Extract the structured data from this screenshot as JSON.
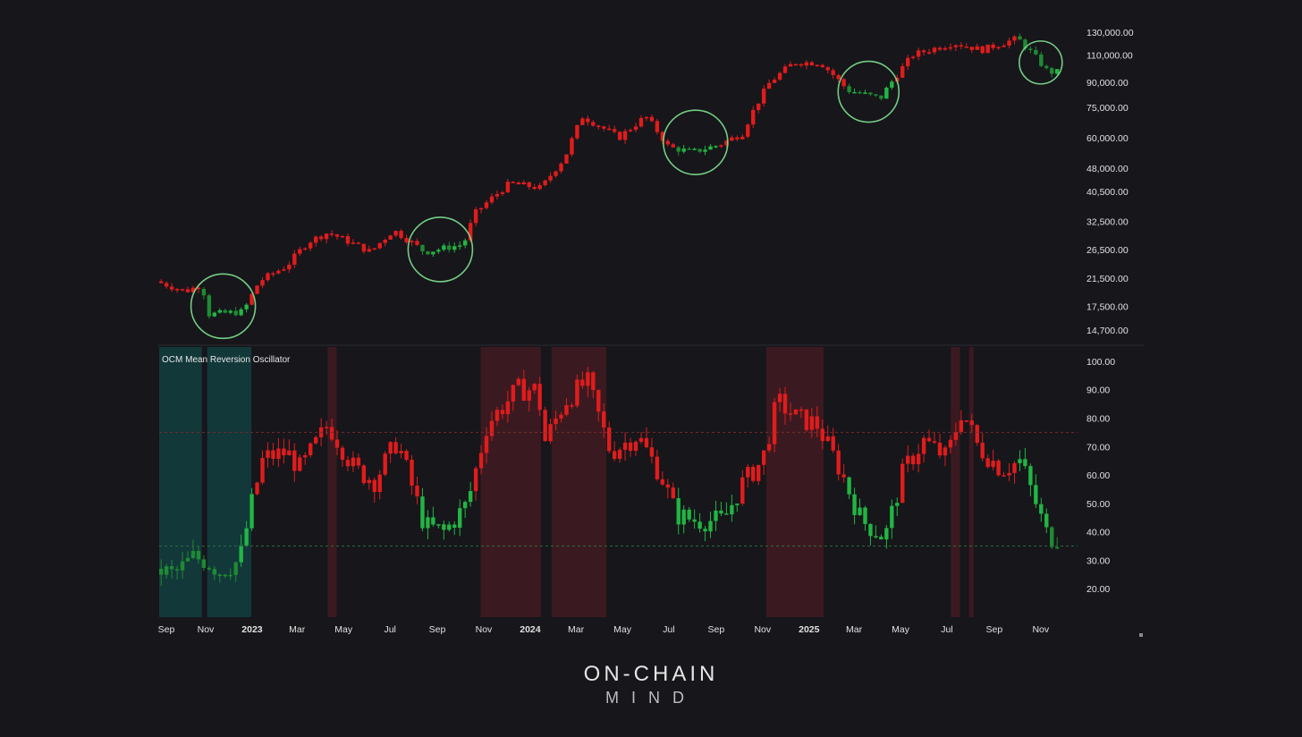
{
  "colors": {
    "background": "#16161b",
    "bearish": "#e01c1c",
    "bullish": "#22b544",
    "bullish_dark": "#1f8a33",
    "highlight_circle": "#7fe08f",
    "overbought_band": "#3a1a20",
    "oversold_band": "#12383a",
    "axis_text": "#e2e2e2"
  },
  "brand": {
    "line1": "ON-CHAIN",
    "line2": "MIND"
  },
  "chart_data": [
    {
      "type": "candlestick",
      "title": "",
      "scale": "log",
      "ylim": [
        13500,
        135000
      ],
      "y_ticks": [
        "130,000.00",
        "110,000.00",
        "90,000.00",
        "75,000.00",
        "60,000.00",
        "48,000.00",
        "40,500.00",
        "32,500.00",
        "26,500.00",
        "21,500.00",
        "17,500.00",
        "14,700.00"
      ],
      "y_tick_values": [
        130000,
        110000,
        90000,
        75000,
        60000,
        48000,
        40500,
        32500,
        26500,
        21500,
        17500,
        14700
      ],
      "x_range": [
        "2022-09-01",
        "2025-11-20"
      ],
      "price_anchors": [
        [
          "2022-09-01",
          21000
        ],
        [
          "2022-10-10",
          19500
        ],
        [
          "2022-10-31",
          20500
        ],
        [
          "2022-11-10",
          16500
        ],
        [
          "2022-12-25",
          16800
        ],
        [
          "2023-01-15",
          21000
        ],
        [
          "2023-02-20",
          23500
        ],
        [
          "2023-03-20",
          28000
        ],
        [
          "2023-04-15",
          30000
        ],
        [
          "2023-06-10",
          26000
        ],
        [
          "2023-07-10",
          30500
        ],
        [
          "2023-08-20",
          26000
        ],
        [
          "2023-10-10",
          27500
        ],
        [
          "2023-10-25",
          34500
        ],
        [
          "2023-12-10",
          43000
        ],
        [
          "2024-01-20",
          41500
        ],
        [
          "2024-02-20",
          52000
        ],
        [
          "2024-03-14",
          70000
        ],
        [
          "2024-05-01",
          60000
        ],
        [
          "2024-06-05",
          70000
        ],
        [
          "2024-07-05",
          56000
        ],
        [
          "2024-08-05",
          54000
        ],
        [
          "2024-09-10",
          57000
        ],
        [
          "2024-10-10",
          62000
        ],
        [
          "2024-11-15",
          90000
        ],
        [
          "2024-12-17",
          104000
        ],
        [
          "2025-01-20",
          104000
        ],
        [
          "2025-02-25",
          85000
        ],
        [
          "2025-04-09",
          80000
        ],
        [
          "2025-05-22",
          110000
        ],
        [
          "2025-07-14",
          120000
        ],
        [
          "2025-08-20",
          114000
        ],
        [
          "2025-10-06",
          124000
        ],
        [
          "2025-11-15",
          97000
        ]
      ],
      "highlight_periods": [
        {
          "center": "2022-11-24",
          "price": 17500
        },
        {
          "center": "2023-09-05",
          "price": 26500
        },
        {
          "center": "2024-08-05",
          "price": 58000
        },
        {
          "center": "2025-03-20",
          "price": 84000
        },
        {
          "center": "2025-11-01",
          "price": 104000
        }
      ]
    },
    {
      "type": "bar",
      "title": "OCM Mean Reversion Oscillator",
      "ylim": [
        10,
        105
      ],
      "y_ticks": [
        "100.00",
        "90.00",
        "80.00",
        "70.00",
        "60.00",
        "50.00",
        "40.00",
        "30.00",
        "20.00"
      ],
      "y_tick_values": [
        100,
        90,
        80,
        70,
        60,
        50,
        40,
        30,
        20
      ],
      "upper_threshold": 75,
      "lower_threshold": 35,
      "oscillator_anchors": [
        [
          "2022-09-01",
          27
        ],
        [
          "2022-09-25",
          25
        ],
        [
          "2022-10-20",
          31
        ],
        [
          "2022-11-05",
          30
        ],
        [
          "2022-11-25",
          26
        ],
        [
          "2022-12-20",
          30
        ],
        [
          "2023-01-05",
          50
        ],
        [
          "2023-01-20",
          66
        ],
        [
          "2023-02-20",
          68
        ],
        [
          "2023-03-10",
          62
        ],
        [
          "2023-04-15",
          78
        ],
        [
          "2023-05-20",
          62
        ],
        [
          "2023-06-15",
          58
        ],
        [
          "2023-07-15",
          72
        ],
        [
          "2023-08-20",
          42
        ],
        [
          "2023-09-15",
          40
        ],
        [
          "2023-10-15",
          50
        ],
        [
          "2023-11-10",
          78
        ],
        [
          "2023-12-20",
          90
        ],
        [
          "2024-01-15",
          90
        ],
        [
          "2024-01-25",
          72
        ],
        [
          "2024-02-20",
          86
        ],
        [
          "2024-03-20",
          93
        ],
        [
          "2024-04-20",
          68
        ],
        [
          "2024-05-25",
          74
        ],
        [
          "2024-06-25",
          60
        ],
        [
          "2024-07-15",
          46
        ],
        [
          "2024-08-10",
          44
        ],
        [
          "2024-09-15",
          44
        ],
        [
          "2024-10-10",
          57
        ],
        [
          "2024-11-05",
          65
        ],
        [
          "2024-11-25",
          86
        ],
        [
          "2024-12-20",
          80
        ],
        [
          "2025-01-15",
          78
        ],
        [
          "2025-02-15",
          62
        ],
        [
          "2025-03-15",
          44
        ],
        [
          "2025-04-15",
          38
        ],
        [
          "2025-05-10",
          62
        ],
        [
          "2025-06-05",
          72
        ],
        [
          "2025-07-05",
          66
        ],
        [
          "2025-07-25",
          83
        ],
        [
          "2025-08-15",
          70
        ],
        [
          "2025-09-15",
          62
        ],
        [
          "2025-10-10",
          65
        ],
        [
          "2025-10-30",
          50
        ],
        [
          "2025-11-15",
          38
        ]
      ],
      "oversold_zones": [
        [
          "2022-09-01",
          "2022-10-27"
        ],
        [
          "2022-11-03",
          "2022-12-31"
        ]
      ],
      "overbought_zones": [
        [
          "2023-04-10",
          "2023-04-22"
        ],
        [
          "2023-10-28",
          "2024-01-15"
        ],
        [
          "2024-01-29",
          "2024-04-10"
        ],
        [
          "2024-11-06",
          "2025-01-20"
        ],
        [
          "2025-07-06",
          "2025-07-18"
        ],
        [
          "2025-07-30",
          "2025-08-05"
        ]
      ]
    }
  ],
  "x_axis_labels": [
    {
      "label": "Sep",
      "date": "2022-09-01",
      "bold": false
    },
    {
      "label": "Nov",
      "date": "2022-11-01",
      "bold": false
    },
    {
      "label": "2023",
      "date": "2023-01-01",
      "bold": true
    },
    {
      "label": "Mar",
      "date": "2023-03-01",
      "bold": false
    },
    {
      "label": "May",
      "date": "2023-05-01",
      "bold": false
    },
    {
      "label": "Jul",
      "date": "2023-07-01",
      "bold": false
    },
    {
      "label": "Sep",
      "date": "2023-09-01",
      "bold": false
    },
    {
      "label": "Nov",
      "date": "2023-11-01",
      "bold": false
    },
    {
      "label": "2024",
      "date": "2024-01-01",
      "bold": true
    },
    {
      "label": "Mar",
      "date": "2024-03-01",
      "bold": false
    },
    {
      "label": "May",
      "date": "2024-05-01",
      "bold": false
    },
    {
      "label": "Jul",
      "date": "2024-07-01",
      "bold": false
    },
    {
      "label": "Sep",
      "date": "2024-09-01",
      "bold": false
    },
    {
      "label": "Nov",
      "date": "2024-11-01",
      "bold": false
    },
    {
      "label": "2025",
      "date": "2025-01-01",
      "bold": true
    },
    {
      "label": "Mar",
      "date": "2025-03-01",
      "bold": false
    },
    {
      "label": "May",
      "date": "2025-05-01",
      "bold": false
    },
    {
      "label": "Jul",
      "date": "2025-07-01",
      "bold": false
    },
    {
      "label": "Sep",
      "date": "2025-09-01",
      "bold": false
    },
    {
      "label": "Nov",
      "date": "2025-11-01",
      "bold": false
    }
  ]
}
